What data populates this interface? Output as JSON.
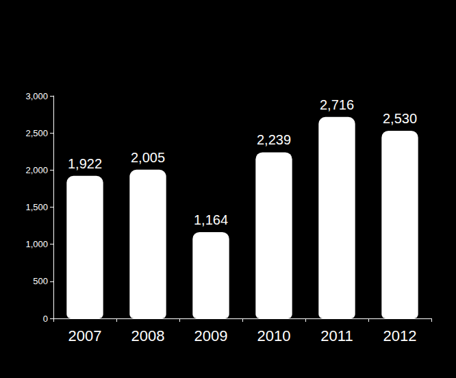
{
  "chart_data": {
    "type": "bar",
    "categories": [
      "2007",
      "2008",
      "2009",
      "2010",
      "2011",
      "2012"
    ],
    "values": [
      1922,
      2005,
      1164,
      2239,
      2716,
      2530
    ],
    "value_labels": [
      "1,922",
      "2,005",
      "1,164",
      "2,239",
      "2,716",
      "2,530"
    ],
    "color": "#ffffff",
    "data_labels": true,
    "grid": false,
    "ylim": [
      0,
      3000
    ],
    "yticks": [
      0,
      500,
      {
        "value": 1000,
        "label": "1,000"
      },
      {
        "value": 1500,
        "label": "1,500"
      },
      {
        "value": 2000,
        "label": "2,000"
      },
      {
        "value": 2500,
        "label": "2,500"
      },
      {
        "value": 3000,
        "label": "3,000"
      }
    ]
  }
}
